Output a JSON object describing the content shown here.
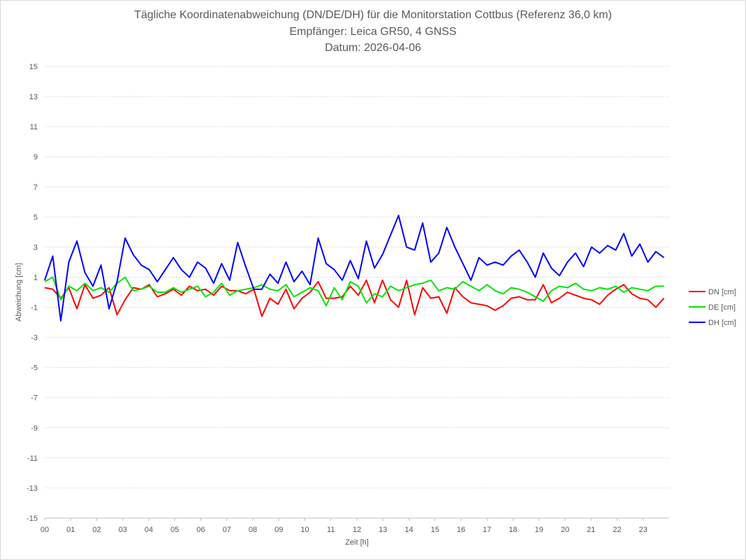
{
  "chart_data": {
    "type": "line",
    "title": "Tägliche Koordinatenabweichung (DN/DE/DH) für die Monitorstation Cottbus (Referenz 36,0 km)",
    "subtitle1": "Empfänger: Leica GR50, 4 GNSS",
    "subtitle2": "Datum: 2026-04-06",
    "xlabel": "Zeit [h]",
    "ylabel": "Abweichung [cm]",
    "xlim": [
      0,
      24
    ],
    "ylim": [
      -15,
      15
    ],
    "x_tick_labels": [
      "00",
      "01",
      "02",
      "03",
      "04",
      "05",
      "06",
      "07",
      "08",
      "09",
      "10",
      "11",
      "12",
      "13",
      "14",
      "15",
      "16",
      "17",
      "18",
      "19",
      "20",
      "21",
      "22",
      "23"
    ],
    "y_tick_labels": [
      "15",
      "13",
      "11",
      "9",
      "7",
      "5",
      "3",
      "1",
      "-1",
      "-3",
      "-5",
      "-7",
      "-9",
      "-11",
      "-13",
      "-15"
    ],
    "grid": true,
    "legend": "right",
    "series": [
      {
        "name": "DN [cm]",
        "color": "#ff0000",
        "values": [
          0.3,
          0.2,
          -0.4,
          0.3,
          -1.1,
          0.5,
          -0.4,
          -0.2,
          0.3,
          -1.5,
          -0.5,
          0.3,
          0.2,
          0.5,
          -0.3,
          -0.1,
          0.2,
          -0.2,
          0.4,
          0.1,
          0.2,
          -0.2,
          0.4,
          0.1,
          0.1,
          -0.1,
          0.2,
          -1.6,
          -0.4,
          -0.8,
          0.2,
          -1.1,
          -0.4,
          0.0,
          0.7,
          -0.4,
          -0.4,
          -0.3,
          0.4,
          -0.2,
          0.8,
          -0.7,
          0.8,
          -0.5,
          -1.0,
          0.8,
          -1.5,
          0.3,
          -0.4,
          -0.3,
          -1.4,
          0.3,
          -0.3,
          -0.7,
          -0.8,
          -0.9,
          -1.2,
          -0.9,
          -0.4,
          -0.3,
          -0.5,
          -0.5,
          0.5,
          -0.7,
          -0.4,
          0.0,
          -0.2,
          -0.4,
          -0.5,
          -0.8,
          -0.2,
          0.2,
          0.5,
          -0.1,
          -0.4,
          -0.5,
          -1.0,
          -0.4
        ]
      },
      {
        "name": "DE [cm]",
        "color": "#00e600",
        "values": [
          0.7,
          1.0,
          -0.5,
          0.4,
          0.1,
          0.6,
          0.1,
          0.3,
          0.0,
          0.6,
          1.0,
          0.1,
          0.2,
          0.4,
          0.0,
          0.0,
          0.3,
          0.0,
          0.2,
          0.4,
          -0.3,
          0.0,
          0.6,
          -0.2,
          0.1,
          0.2,
          0.3,
          0.5,
          0.2,
          0.1,
          0.5,
          -0.3,
          0.0,
          0.3,
          0.1,
          -0.9,
          0.3,
          -0.5,
          0.7,
          0.4,
          -0.7,
          -0.1,
          -0.3,
          0.4,
          0.1,
          0.3,
          0.5,
          0.6,
          0.8,
          0.1,
          0.3,
          0.2,
          0.7,
          0.4,
          0.1,
          0.5,
          0.1,
          -0.1,
          0.3,
          0.2,
          0.0,
          -0.3,
          -0.6,
          0.1,
          0.4,
          0.3,
          0.6,
          0.2,
          0.1,
          0.3,
          0.2,
          0.4,
          0.0,
          0.3,
          0.2,
          0.1,
          0.4,
          0.4
        ]
      },
      {
        "name": "DH [cm]",
        "color": "#0000ff",
        "values": [
          0.8,
          2.4,
          -1.9,
          2.0,
          3.4,
          1.3,
          0.4,
          1.8,
          -1.1,
          0.7,
          3.6,
          2.5,
          1.8,
          1.5,
          0.7,
          1.5,
          2.3,
          1.5,
          1.0,
          2.0,
          1.6,
          0.6,
          1.9,
          0.8,
          3.3,
          1.7,
          0.2,
          0.2,
          1.2,
          0.6,
          2.0,
          0.7,
          1.4,
          0.5,
          3.6,
          1.9,
          1.5,
          0.8,
          2.1,
          0.9,
          3.4,
          1.6,
          2.5,
          3.8,
          5.1,
          3.0,
          2.8,
          4.6,
          2.0,
          2.6,
          4.3,
          3.0,
          1.9,
          0.8,
          2.3,
          1.8,
          2.0,
          1.8,
          2.4,
          2.8,
          2.0,
          1.0,
          2.6,
          1.6,
          1.1,
          2.0,
          2.6,
          1.7,
          3.0,
          2.6,
          3.1,
          2.8,
          3.9,
          2.4,
          3.2,
          2.0,
          2.7,
          2.3
        ]
      }
    ]
  }
}
